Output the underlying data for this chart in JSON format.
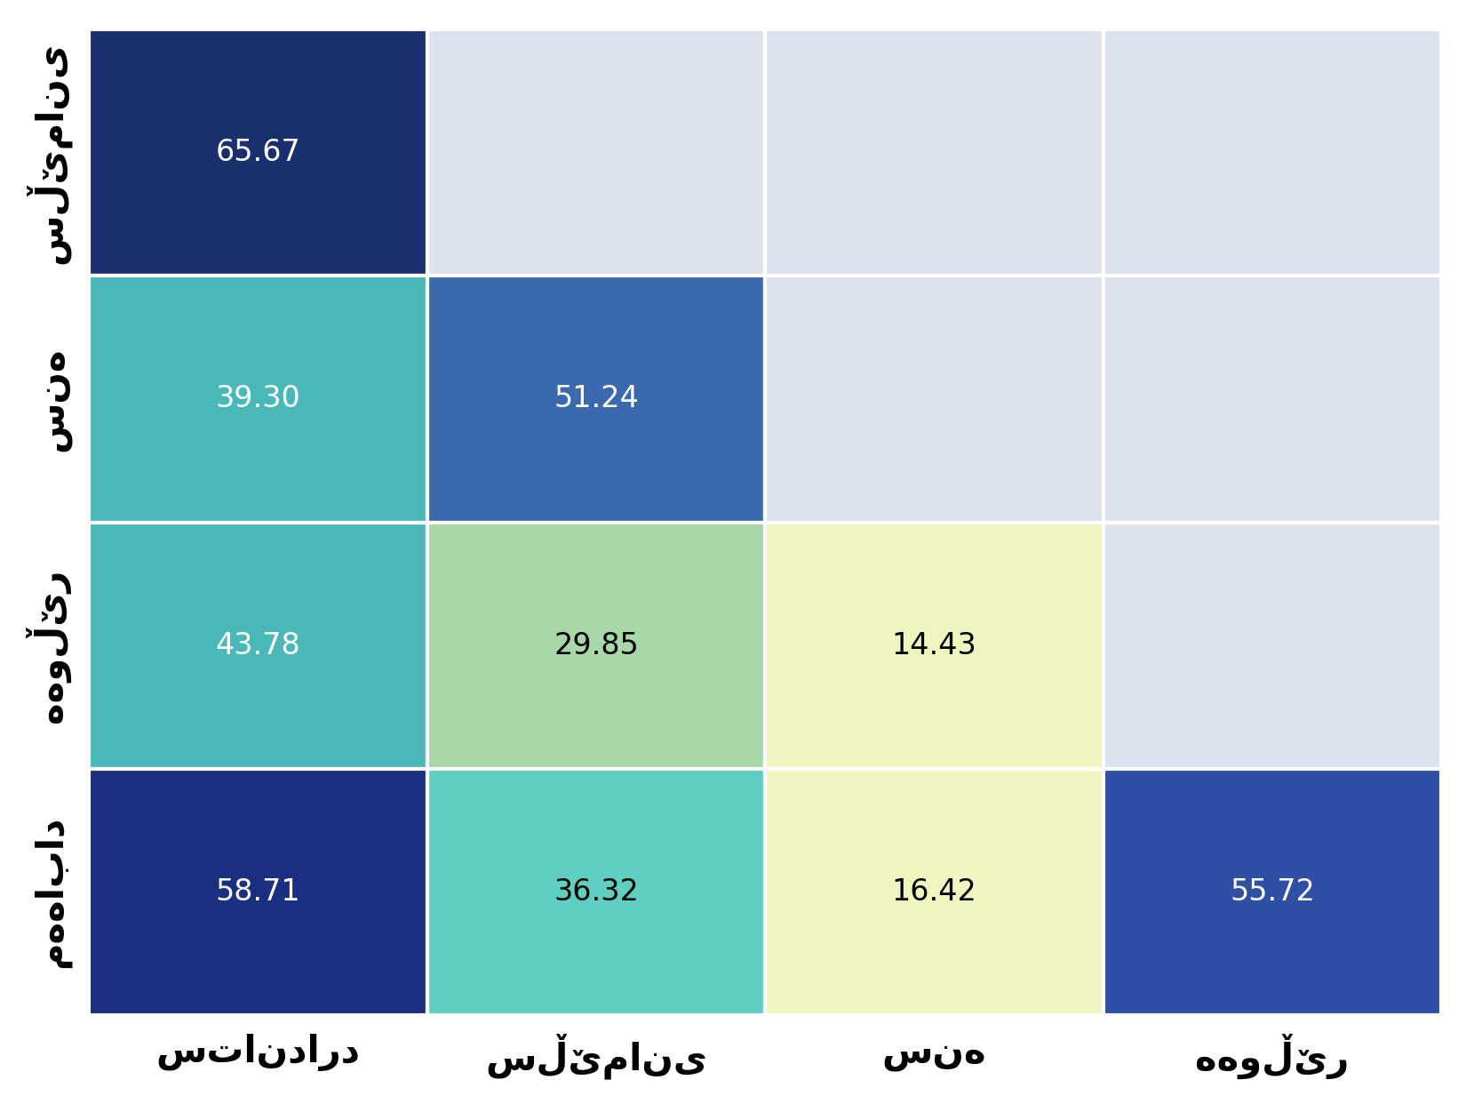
{
  "row_labels": [
    "سڵێمانی",
    "سنە",
    "هەوڵێر",
    "مەهاباد"
  ],
  "col_labels": [
    "ستاندارد",
    "سڵێمانی",
    "سنە",
    "هەوڵێر"
  ],
  "values": [
    [
      65.67,
      null,
      null,
      null
    ],
    [
      39.3,
      51.24,
      null,
      null
    ],
    [
      43.78,
      29.85,
      14.43,
      null
    ],
    [
      58.71,
      36.32,
      16.42,
      55.72
    ]
  ],
  "cell_colors": [
    [
      "#1a2f6e",
      "#dde3ee",
      "#dde3ee",
      "#dde3ee"
    ],
    [
      "#4ab8b8",
      "#3a6aad",
      "#dde3ee",
      "#dde3ee"
    ],
    [
      "#4ab8b8",
      "#a8d8a8",
      "#f0f5c0",
      "#dde3ee"
    ],
    [
      "#1a2f80",
      "#5ecfc0",
      "#f0f5c0",
      "#2e4fa3"
    ]
  ],
  "text_colors": [
    [
      "white",
      "none",
      "none",
      "none"
    ],
    [
      "white",
      "white",
      "none",
      "none"
    ],
    [
      "white",
      "black",
      "black",
      "none"
    ],
    [
      "white",
      "black",
      "black",
      "white"
    ]
  ],
  "empty_color": "#dde3ee",
  "background_color": "#ffffff",
  "font_size_values": 24,
  "font_size_labels": 30
}
